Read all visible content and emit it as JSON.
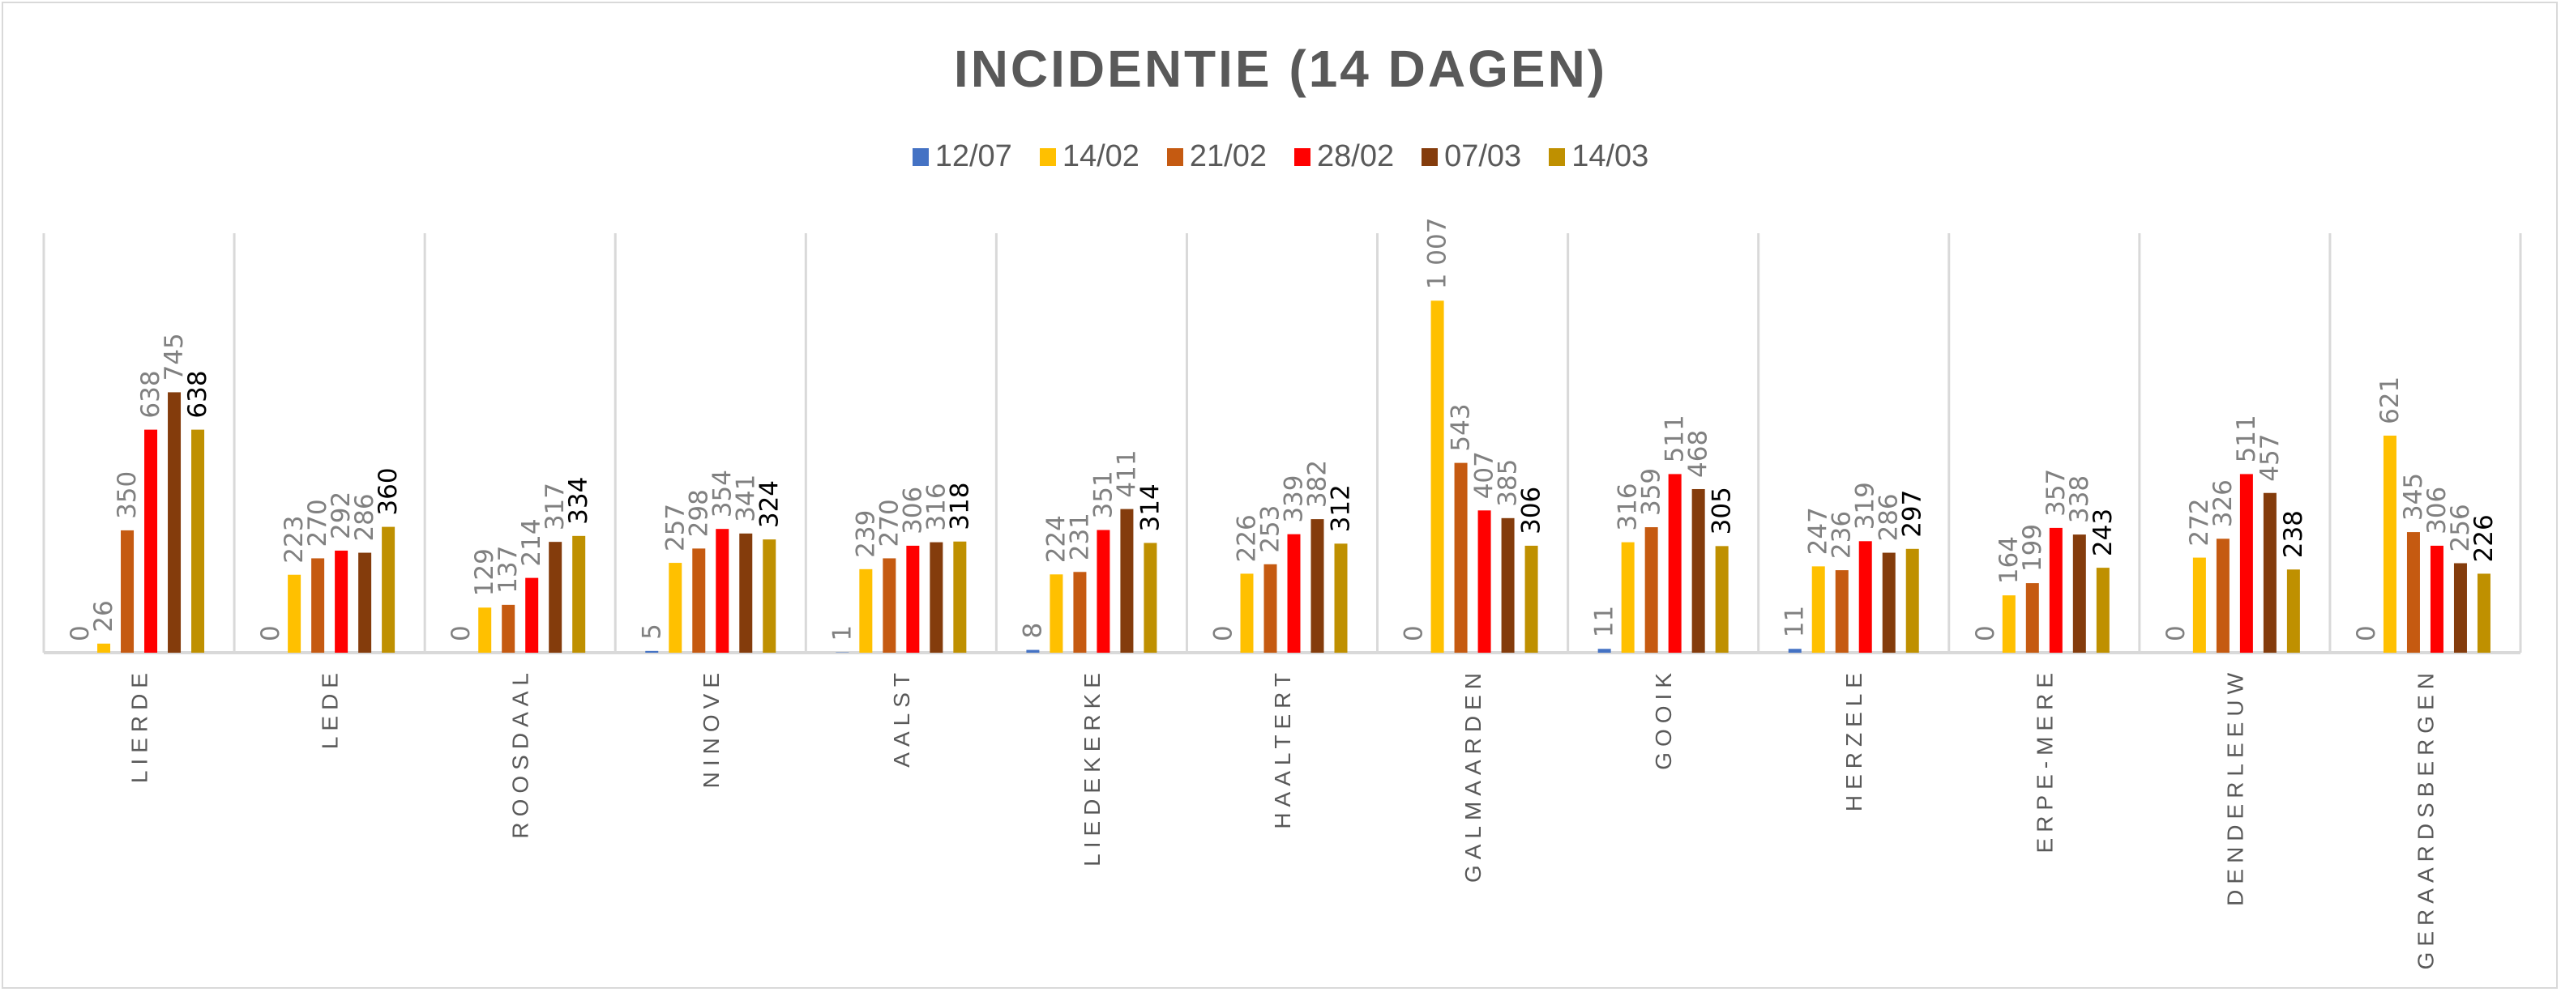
{
  "chart_data": {
    "type": "bar",
    "title": "INCIDENTIE (14 DAGEN)",
    "legend_position": "top",
    "grid": "vertical category separators",
    "ylim": [
      0,
      1200
    ],
    "categories": [
      "LIERDE",
      "LEDE",
      "ROOSDAAL",
      "NINOVE",
      "AALST",
      "LIEDEKERKE",
      "HAALTERT",
      "GALMAARDEN",
      "GOOIK",
      "HERZELE",
      "ERPE-MERE",
      "DENDERLEEUW",
      "GERAARDSBERGEN"
    ],
    "series": [
      {
        "name": "12/07",
        "color": "#4472c4",
        "values": [
          0,
          0,
          0,
          5,
          1,
          8,
          0,
          0,
          11,
          11,
          0,
          0,
          0
        ],
        "labels": [
          "0",
          "0",
          "0",
          "5",
          "1",
          "8",
          "0",
          "0",
          "11",
          "11",
          "0",
          "0",
          "0"
        ]
      },
      {
        "name": "14/02",
        "color": "#ffc000",
        "values": [
          26,
          223,
          129,
          257,
          239,
          224,
          226,
          1007,
          316,
          247,
          164,
          272,
          621
        ],
        "labels": [
          "26",
          "223",
          "129",
          "257",
          "239",
          "224",
          "226",
          "1 007",
          "316",
          "247",
          "164",
          "272",
          "621"
        ]
      },
      {
        "name": "21/02",
        "color": "#c55a11",
        "values": [
          350,
          270,
          137,
          298,
          270,
          231,
          253,
          543,
          359,
          236,
          199,
          326,
          345
        ],
        "labels": [
          "350",
          "270",
          "137",
          "298",
          "270",
          "231",
          "253",
          "543",
          "359",
          "236",
          "199",
          "326",
          "345"
        ]
      },
      {
        "name": "28/02",
        "color": "#ff0000",
        "values": [
          638,
          292,
          214,
          354,
          306,
          351,
          339,
          407,
          511,
          319,
          357,
          511,
          306
        ],
        "labels": [
          "638",
          "292",
          "214",
          "354",
          "306",
          "351",
          "339",
          "407",
          "511",
          "319",
          "357",
          "511",
          "306"
        ]
      },
      {
        "name": "07/03",
        "color": "#843c0c",
        "values": [
          745,
          286,
          317,
          341,
          316,
          411,
          382,
          385,
          468,
          286,
          338,
          457,
          256
        ],
        "labels": [
          "745",
          "286",
          "317",
          "341",
          "316",
          "411",
          "382",
          "385",
          "468",
          "286",
          "338",
          "457",
          "256"
        ]
      },
      {
        "name": "14/03",
        "color": "#bf9000",
        "values": [
          638,
          360,
          334,
          324,
          318,
          314,
          312,
          306,
          305,
          297,
          243,
          238,
          226
        ],
        "labels": [
          "638",
          "360",
          "334",
          "324",
          "318",
          "314",
          "312",
          "306",
          "305",
          "297",
          "243",
          "238",
          "226"
        ]
      }
    ],
    "label_color": "#808080",
    "highlight_label_color": "#000000"
  }
}
